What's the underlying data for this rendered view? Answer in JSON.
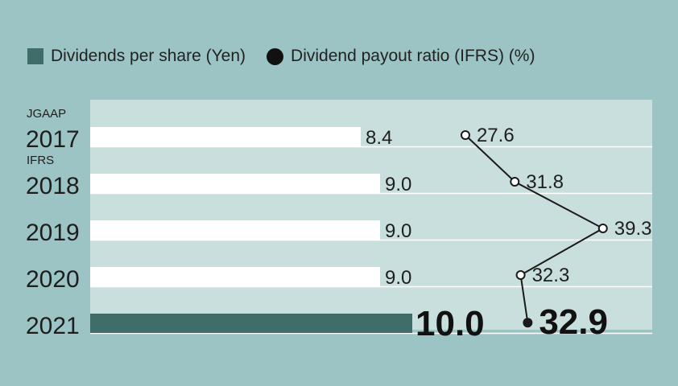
{
  "legend": {
    "dividends_label": "Dividends per share (Yen)",
    "payout_label": "Dividend payout ratio (IFRS) (%)"
  },
  "chart_data": {
    "type": "bar",
    "orientation": "horizontal",
    "categories": [
      "2017",
      "2018",
      "2019",
      "2020",
      "2021"
    ],
    "standards": [
      "JGAAP",
      "IFRS",
      "",
      "",
      ""
    ],
    "series": [
      {
        "name": "Dividends per share (Yen)",
        "type": "bar",
        "values": [
          8.4,
          9.0,
          9.0,
          9.0,
          10.0
        ],
        "labels": [
          "8.4",
          "9.0",
          "9.0",
          "9.0",
          "10.0"
        ]
      },
      {
        "name": "Dividend payout ratio (IFRS) (%)",
        "type": "line",
        "values": [
          27.6,
          31.8,
          39.3,
          32.3,
          32.9
        ],
        "labels": [
          "27.6",
          "31.8",
          "39.3",
          "32.3",
          "32.9"
        ]
      }
    ],
    "highlight_index": 4,
    "colors": {
      "background": "#9cc4c4",
      "plot_band": "#c9dfdd",
      "bar": "#ffffff",
      "bar_highlight": "#3f6e6a",
      "line": "#1a1a1a"
    }
  }
}
